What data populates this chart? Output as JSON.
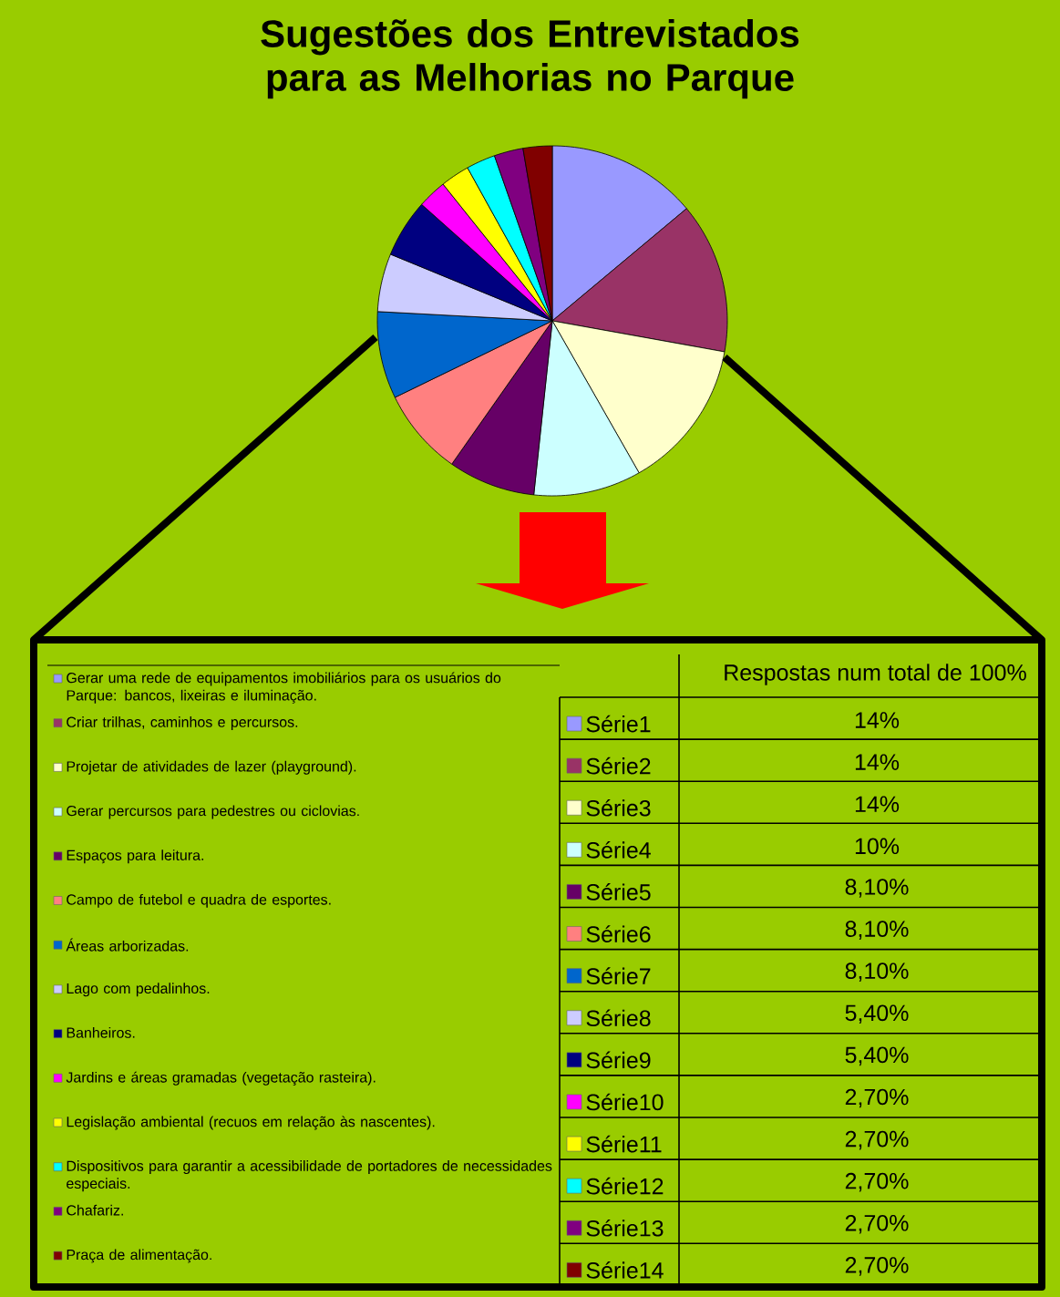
{
  "chart_data": {
    "type": "pie",
    "title": "Sugestões dos Entrevistados para as Melhorias no Parque",
    "categories": [
      "Gerar uma rede de equipamentos imobiliários para os usuários do Parque: bancos, lixeiras e iluminação.",
      "Criar trilhas, caminhos e percursos.",
      "Projetar de atividades de lazer (playground).",
      "Gerar percursos para pedestres ou ciclovias.",
      "Espaços para leitura.",
      "Campo de futebol e quadra de esportes.",
      "Áreas arborizadas.",
      "Lago com pedalinhos.",
      "Banheiros.",
      "Jardins e áreas gramadas (vegetação rasteira).",
      "Legislação ambiental (recuos em relação às nascentes).",
      "Dispositivos para garantir a acessibilidade de portadores de necessidades especiais.",
      "Chafariz.",
      "Praça de alimentação."
    ],
    "values": [
      14,
      14,
      14,
      10,
      8.1,
      8.1,
      8.1,
      5.4,
      5.4,
      2.7,
      2.7,
      2.7,
      2.7,
      2.7
    ],
    "colors": [
      "#9999ff",
      "#993366",
      "#ffffcc",
      "#ccffff",
      "#660066",
      "#ff8080",
      "#0066cc",
      "#ccccff",
      "#000080",
      "#ff00ff",
      "#ffff00",
      "#00ffff",
      "#800080",
      "#800000"
    ],
    "legend": "bottom",
    "annotations": [
      "Respostas num total de 100%",
      "Série1",
      "Série2",
      "Série3",
      "Série4",
      "Série5",
      "Série6",
      "Série7",
      "Série8",
      "Série9",
      "Série10",
      "Série11",
      "Série12",
      "Série13",
      "Série14",
      "14%",
      "14%",
      "14%",
      "10%",
      "8,10%",
      "8,10%",
      "8,10%",
      "5,40%",
      "5,40%",
      "2,70%",
      "2,70%",
      "2,70%",
      "2,70%",
      "2,70%"
    ]
  }
}
